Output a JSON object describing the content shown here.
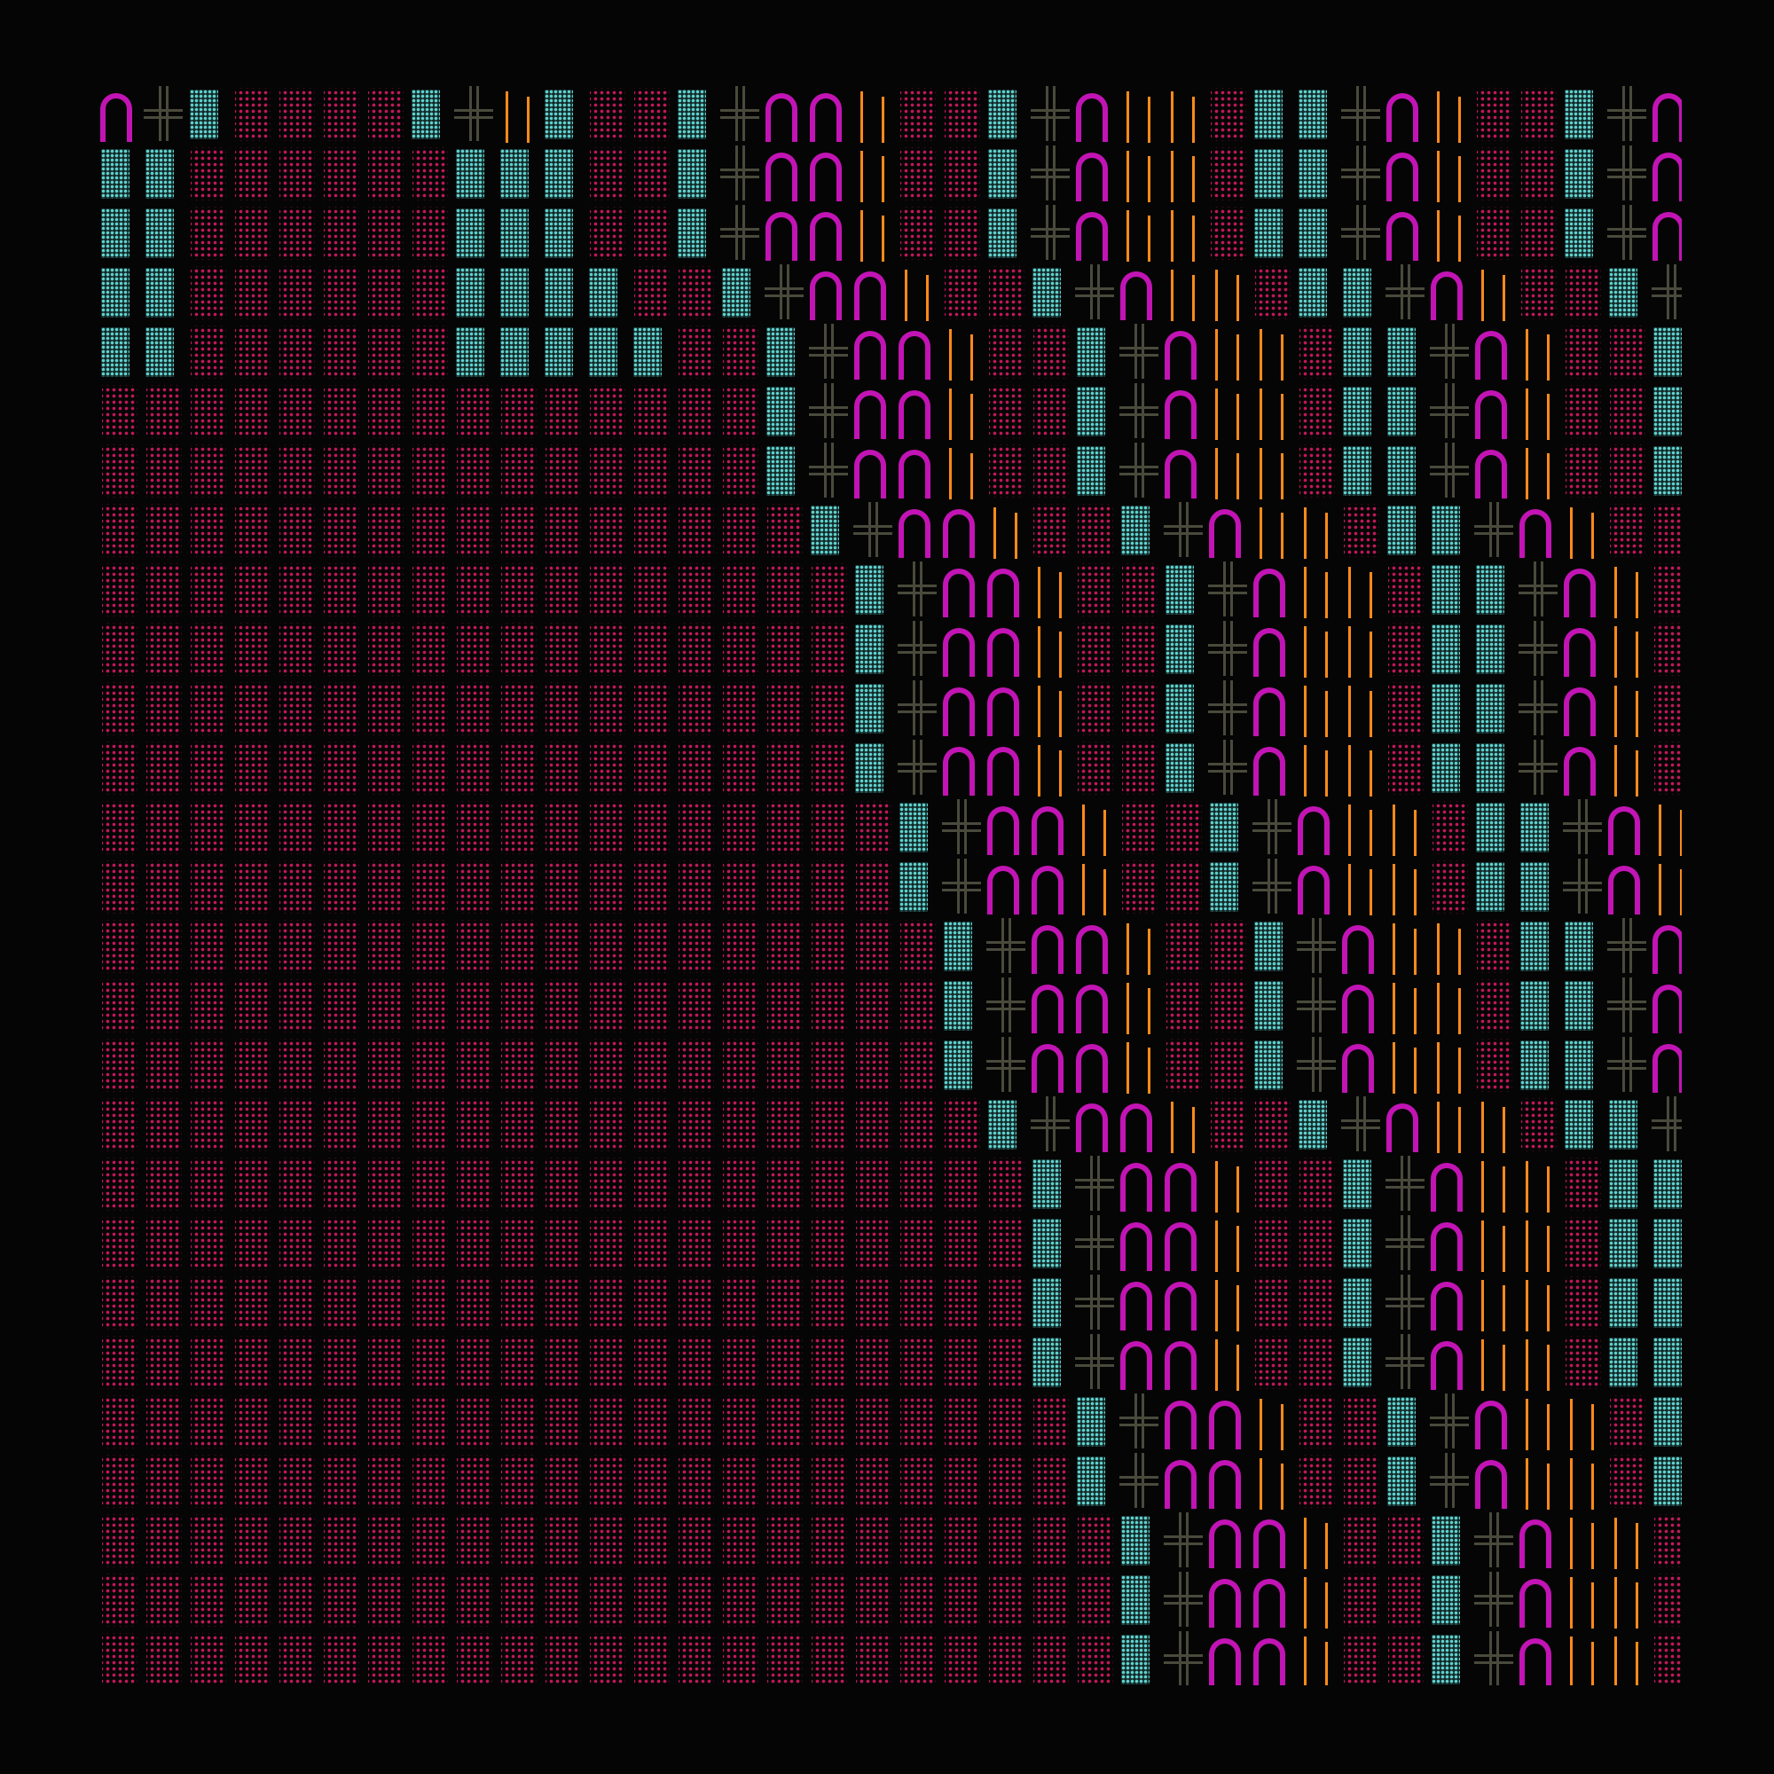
{
  "artwork": {
    "background": "#050505",
    "columns": 36,
    "rows": 27,
    "glyph_types": [
      "dots",
      "shade",
      "cross",
      "arch",
      "bars"
    ],
    "colors": {
      "dots": "#c2185b",
      "shade": "#5fd3cf",
      "cross": "#4a4a3c",
      "arch": "#c214b4",
      "bars": "#ff8a1a"
    },
    "band_starts": [
      0,
      0,
      0,
      1,
      2,
      2,
      2,
      3,
      4,
      4,
      4,
      4,
      5,
      5,
      6,
      6,
      6,
      7,
      8,
      8,
      8,
      8,
      9,
      9,
      10,
      10,
      10
    ],
    "pattern": [
      "dots",
      "dots",
      "shade",
      "cross",
      "arch",
      "arch",
      "bars",
      "dots",
      "dots",
      "shade",
      "cross",
      "arch",
      "bars",
      "bars",
      "dots",
      "shade",
      "shade",
      "cross",
      "arch",
      "bars",
      "dots",
      "dots",
      "shade",
      "cross",
      "arch",
      "arch",
      "bars",
      "dots",
      "shade",
      "cross",
      "arch",
      "bars",
      "dots",
      "shade",
      "cross",
      "arch",
      "bars"
    ]
  }
}
